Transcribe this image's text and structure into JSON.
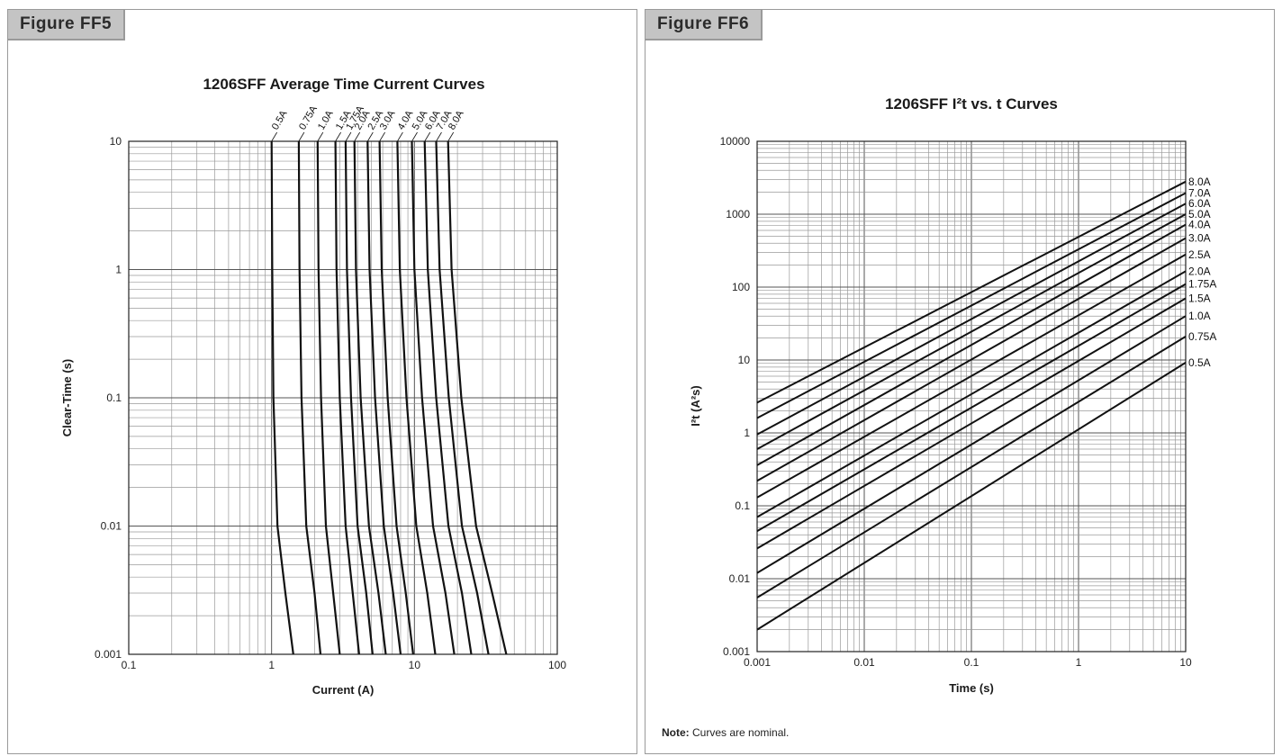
{
  "figures": [
    {
      "label": "Figure FF5"
    },
    {
      "label": "Figure FF6"
    }
  ],
  "note": {
    "label": "Note:",
    "text": "Curves are nominal."
  },
  "chart_data": [
    {
      "type": "line",
      "title": "1206SFF Average Time Current Curves",
      "xlabel": "Current (A)",
      "ylabel": "Clear-Time (s)",
      "xscale": "log",
      "yscale": "log",
      "xlim": [
        0.1,
        100
      ],
      "ylim": [
        0.001,
        10
      ],
      "grid": true,
      "x_ticks": [
        "0.1",
        "1",
        "10",
        "100"
      ],
      "y_ticks": [
        "0.001",
        "0.01",
        "0.1",
        "1",
        "10"
      ],
      "series": [
        {
          "name": "0.5A",
          "points": [
            [
              1.0,
              10
            ],
            [
              1.01,
              1
            ],
            [
              1.03,
              0.1
            ],
            [
              1.1,
              0.01
            ],
            [
              1.25,
              0.003
            ],
            [
              1.42,
              0.001
            ]
          ]
        },
        {
          "name": "0.75A",
          "points": [
            [
              1.55,
              10
            ],
            [
              1.57,
              1
            ],
            [
              1.62,
              0.1
            ],
            [
              1.75,
              0.01
            ],
            [
              2.0,
              0.003
            ],
            [
              2.2,
              0.001
            ]
          ]
        },
        {
          "name": "1.0A",
          "points": [
            [
              2.1,
              10
            ],
            [
              2.13,
              1
            ],
            [
              2.22,
              0.1
            ],
            [
              2.4,
              0.01
            ],
            [
              2.7,
              0.003
            ],
            [
              3.0,
              0.001
            ]
          ]
        },
        {
          "name": "1.5A",
          "points": [
            [
              2.8,
              10
            ],
            [
              2.85,
              1
            ],
            [
              3.0,
              0.1
            ],
            [
              3.3,
              0.01
            ],
            [
              3.7,
              0.003
            ],
            [
              4.1,
              0.001
            ]
          ]
        },
        {
          "name": "1.75A",
          "points": [
            [
              3.3,
              10
            ],
            [
              3.37,
              1
            ],
            [
              3.6,
              0.1
            ],
            [
              4.0,
              0.01
            ],
            [
              4.6,
              0.003
            ],
            [
              5.1,
              0.001
            ]
          ]
        },
        {
          "name": "2.0A",
          "points": [
            [
              3.8,
              10
            ],
            [
              3.9,
              1
            ],
            [
              4.2,
              0.1
            ],
            [
              4.8,
              0.01
            ],
            [
              5.6,
              0.003
            ],
            [
              6.3,
              0.001
            ]
          ]
        },
        {
          "name": "2.5A",
          "points": [
            [
              4.7,
              10
            ],
            [
              4.85,
              1
            ],
            [
              5.3,
              0.1
            ],
            [
              6.1,
              0.01
            ],
            [
              7.1,
              0.003
            ],
            [
              8.0,
              0.001
            ]
          ]
        },
        {
          "name": "3.0A",
          "points": [
            [
              5.7,
              10
            ],
            [
              5.9,
              1
            ],
            [
              6.5,
              0.1
            ],
            [
              7.5,
              0.01
            ],
            [
              8.7,
              0.003
            ],
            [
              9.8,
              0.001
            ]
          ]
        },
        {
          "name": "4.0A",
          "points": [
            [
              7.6,
              10
            ],
            [
              7.9,
              1
            ],
            [
              8.8,
              0.1
            ],
            [
              10.3,
              0.01
            ],
            [
              12.3,
              0.003
            ],
            [
              14,
              0.001
            ]
          ]
        },
        {
          "name": "5.0A",
          "points": [
            [
              9.6,
              10
            ],
            [
              10,
              1
            ],
            [
              11.3,
              0.1
            ],
            [
              13.5,
              0.01
            ],
            [
              16.5,
              0.003
            ],
            [
              19,
              0.001
            ]
          ]
        },
        {
          "name": "6.0A",
          "points": [
            [
              11.8,
              10
            ],
            [
              12.4,
              1
            ],
            [
              14.2,
              0.1
            ],
            [
              17.3,
              0.01
            ],
            [
              21.5,
              0.003
            ],
            [
              25,
              0.001
            ]
          ]
        },
        {
          "name": "7.0A",
          "points": [
            [
              14.2,
              10
            ],
            [
              15,
              1
            ],
            [
              17.4,
              0.1
            ],
            [
              21.5,
              0.01
            ],
            [
              27.5,
              0.003
            ],
            [
              33,
              0.001
            ]
          ]
        },
        {
          "name": "8.0A",
          "points": [
            [
              17.2,
              10
            ],
            [
              18.2,
              1
            ],
            [
              21.3,
              0.1
            ],
            [
              27,
              0.01
            ],
            [
              35,
              0.003
            ],
            [
              44,
              0.001
            ]
          ]
        }
      ]
    },
    {
      "type": "line",
      "title": "1206SFF I²t  vs. t Curves",
      "xlabel": "Time (s)",
      "ylabel": "I²t (A²s)",
      "xscale": "log",
      "yscale": "log",
      "xlim": [
        0.001,
        10
      ],
      "ylim": [
        0.001,
        10000
      ],
      "grid": true,
      "x_ticks": [
        "0.001",
        "0.01",
        "0.1",
        "1",
        "10"
      ],
      "y_ticks": [
        "0.001",
        "0.01",
        "0.1",
        "1",
        "10",
        "100",
        "1000",
        "10000"
      ],
      "series": [
        {
          "name": "0.5A",
          "points": [
            [
              0.001,
              0.002
            ],
            [
              10,
              9.2
            ]
          ]
        },
        {
          "name": "0.75A",
          "points": [
            [
              0.001,
              0.0055
            ],
            [
              10,
              21
            ]
          ]
        },
        {
          "name": "1.0A",
          "points": [
            [
              0.001,
              0.012
            ],
            [
              10,
              40
            ]
          ]
        },
        {
          "name": "1.5A",
          "points": [
            [
              0.001,
              0.026
            ],
            [
              10,
              70
            ]
          ]
        },
        {
          "name": "1.75A",
          "points": [
            [
              0.001,
              0.045
            ],
            [
              10,
              110
            ]
          ]
        },
        {
          "name": "2.0A",
          "points": [
            [
              0.001,
              0.07
            ],
            [
              10,
              165
            ]
          ]
        },
        {
          "name": "2.5A",
          "points": [
            [
              0.001,
              0.13
            ],
            [
              10,
              280
            ]
          ]
        },
        {
          "name": "3.0A",
          "points": [
            [
              0.001,
              0.22
            ],
            [
              10,
              470
            ]
          ]
        },
        {
          "name": "4.0A",
          "points": [
            [
              0.001,
              0.36
            ],
            [
              10,
              720
            ]
          ]
        },
        {
          "name": "5.0A",
          "points": [
            [
              0.001,
              0.6
            ],
            [
              10,
              1000
            ]
          ]
        },
        {
          "name": "6.0A",
          "points": [
            [
              0.001,
              0.95
            ],
            [
              10,
              1400
            ]
          ]
        },
        {
          "name": "7.0A",
          "points": [
            [
              0.001,
              1.6
            ],
            [
              10,
              1950
            ]
          ]
        },
        {
          "name": "8.0A",
          "points": [
            [
              0.001,
              2.6
            ],
            [
              10,
              2800
            ]
          ]
        }
      ]
    }
  ]
}
